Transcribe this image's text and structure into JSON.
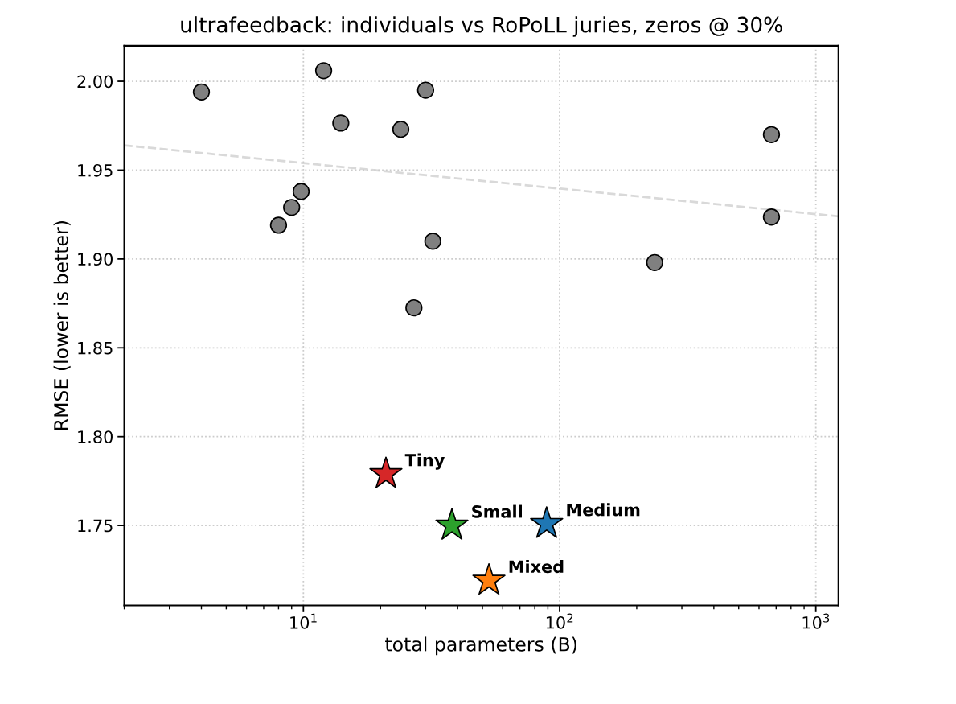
{
  "chart_data": {
    "type": "scatter",
    "title": "ultrafeedback: individuals vs RoPoLL juries, zeros @ 30%",
    "xlabel": "total parameters (B)",
    "ylabel": "RMSE (lower is better)",
    "log": "x",
    "grid": true,
    "legend": false,
    "xlim": [
      2,
      1225
    ],
    "ylim": [
      1.705,
      2.02
    ],
    "xticks": [
      {
        "value": 10,
        "label": "10$^{1}$"
      },
      {
        "value": 100,
        "label": "10$^{2}$"
      },
      {
        "value": 1000,
        "label": "10$^{3}$"
      }
    ],
    "yticks": [
      {
        "value": 1.75,
        "label": "1.75"
      },
      {
        "value": 1.8,
        "label": "1.80"
      },
      {
        "value": 1.85,
        "label": "1.85"
      },
      {
        "value": 1.9,
        "label": "1.90"
      },
      {
        "value": 1.95,
        "label": "1.95"
      },
      {
        "value": 2.0,
        "label": "2.00"
      }
    ],
    "series": [
      {
        "type": "line",
        "color": "#d9d9d9",
        "line_style": "dashed",
        "marker": "none",
        "x": [
          2,
          1225
        ],
        "values": [
          1.964,
          1.924
        ]
      },
      {
        "color": "#808080",
        "marker": "circle",
        "x": [
          4,
          12,
          14,
          30,
          24,
          671,
          671,
          9.8,
          9,
          8,
          32,
          235,
          27
        ],
        "values": [
          1.994,
          2.006,
          1.9765,
          1.995,
          1.973,
          1.97,
          1.9236,
          1.938,
          1.929,
          1.919,
          1.91,
          1.898,
          1.8725
        ]
      },
      {
        "name": "Tiny",
        "color": "#d62728",
        "marker": "star",
        "x": [
          21
        ],
        "values": [
          1.779
        ]
      },
      {
        "name": "Small",
        "color": "#2ca02c",
        "marker": "star",
        "x": [
          38
        ],
        "values": [
          1.75
        ]
      },
      {
        "name": "Medium",
        "color": "#1f77b4",
        "marker": "star",
        "x": [
          89
        ],
        "values": [
          1.751
        ]
      },
      {
        "name": "Mixed",
        "color": "#ff7f0e",
        "marker": "star",
        "x": [
          53
        ],
        "values": [
          1.719
        ]
      }
    ]
  }
}
